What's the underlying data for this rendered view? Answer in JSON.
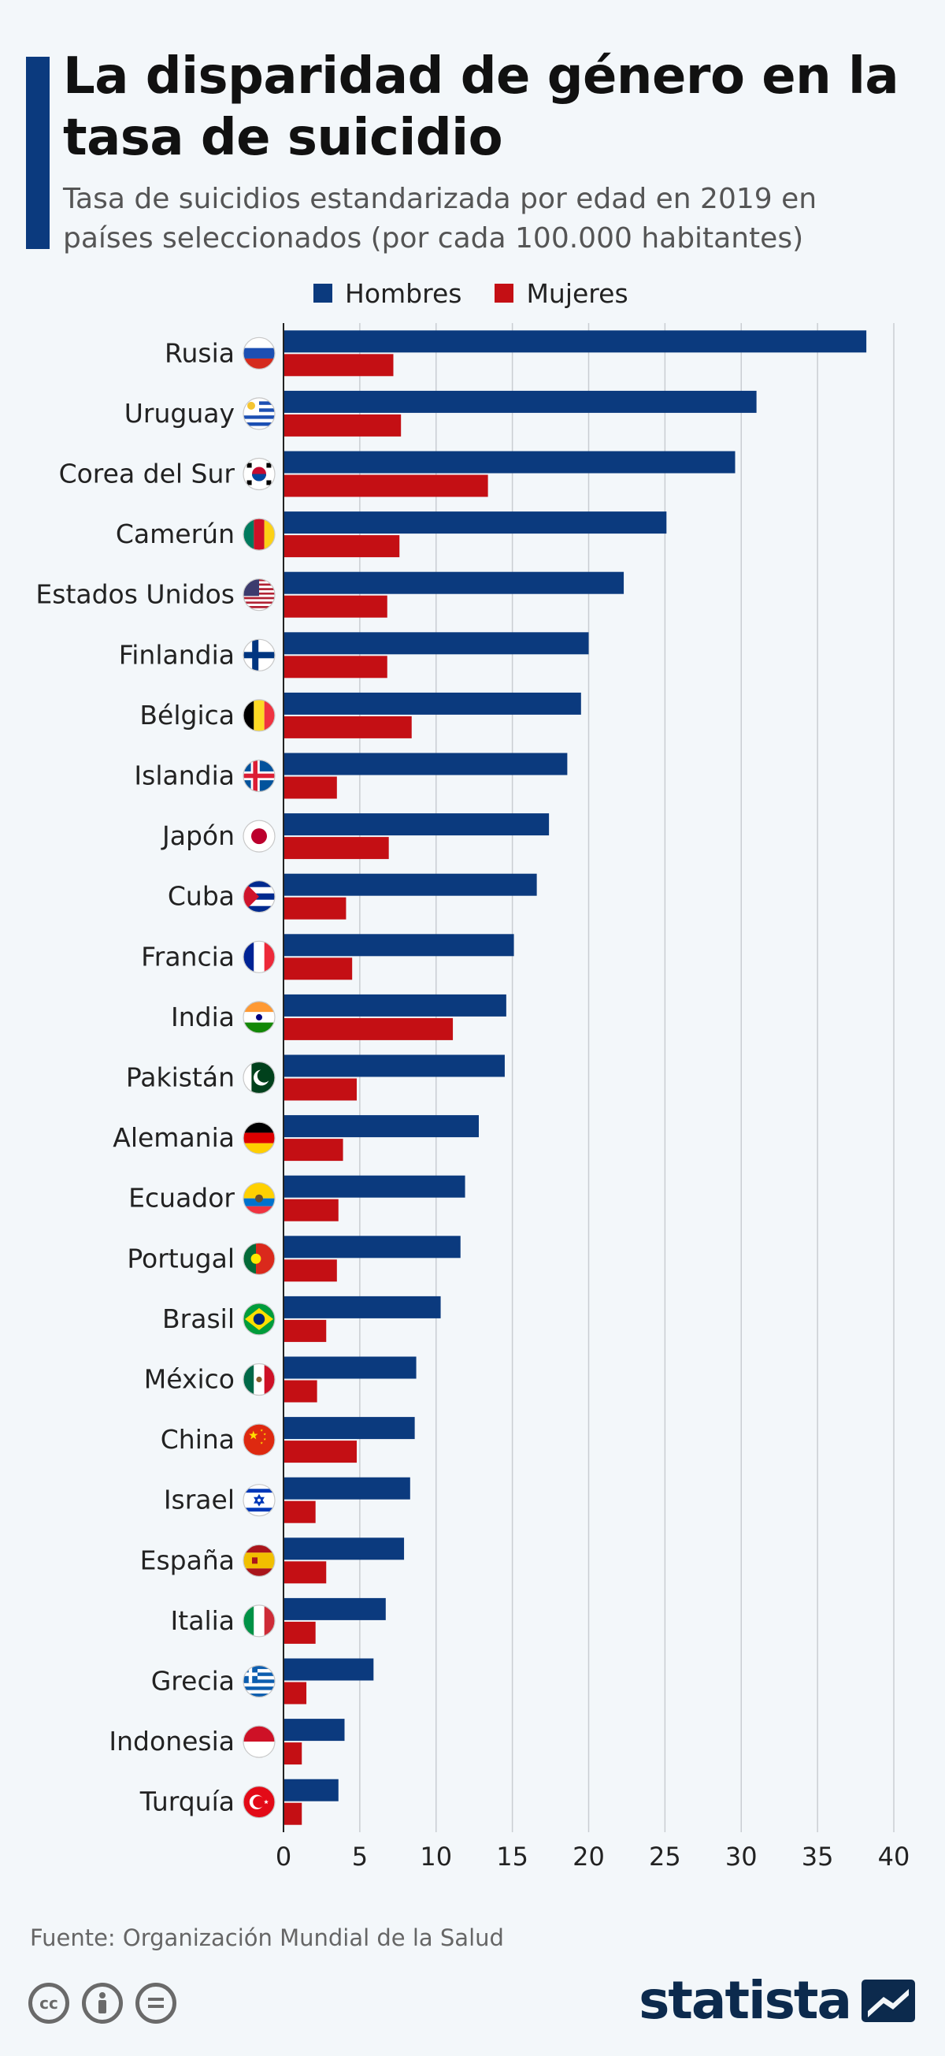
{
  "header": {
    "title": "La disparidad de género en la tasa de suicidio",
    "subtitle": "Tasa de suicidios estandarizada por edad en 2019 en países seleccionados (por cada 100.000 habitantes)"
  },
  "colors": {
    "accent": "#0b3a7e",
    "men": "#0b3a7e",
    "women": "#c40f14"
  },
  "legend": {
    "men_label": "Hombres",
    "women_label": "Mujeres"
  },
  "chart_data": {
    "type": "bar",
    "orientation": "horizontal",
    "title": "La disparidad de género en la tasa de suicidio",
    "subtitle": "Tasa de suicidios estandarizada por edad en 2019 en países seleccionados (por cada 100.000 habitantes)",
    "xlabel": "",
    "ylabel": "",
    "xlim": [
      0,
      40
    ],
    "x_ticks": [
      0,
      5,
      10,
      15,
      20,
      25,
      30,
      35,
      40
    ],
    "grid": "vertical",
    "legend_position": "top",
    "categories": [
      "Rusia",
      "Uruguay",
      "Corea del Sur",
      "Camerún",
      "Estados Unidos",
      "Finlandia",
      "Bélgica",
      "Islandia",
      "Japón",
      "Cuba",
      "Francia",
      "India",
      "Pakistán",
      "Alemania",
      "Ecuador",
      "Portugal",
      "Brasil",
      "México",
      "China",
      "Israel",
      "España",
      "Italia",
      "Grecia",
      "Indonesia",
      "Turquía"
    ],
    "flags": [
      "flag-russia",
      "flag-uruguay",
      "flag-south-korea",
      "flag-cameroon",
      "flag-usa",
      "flag-finland",
      "flag-belgium",
      "flag-iceland",
      "flag-japan",
      "flag-cuba",
      "flag-france",
      "flag-india",
      "flag-pakistan",
      "flag-germany",
      "flag-ecuador",
      "flag-portugal",
      "flag-brazil",
      "flag-mexico",
      "flag-china",
      "flag-israel",
      "flag-spain",
      "flag-italy",
      "flag-greece",
      "flag-indonesia",
      "flag-turkey"
    ],
    "series": [
      {
        "name": "Hombres",
        "color": "#0b3a7e",
        "values": [
          38.2,
          31.0,
          29.6,
          25.1,
          22.3,
          20.0,
          19.5,
          18.6,
          17.4,
          16.6,
          15.1,
          14.6,
          14.5,
          12.8,
          11.9,
          11.6,
          10.3,
          8.7,
          8.6,
          8.3,
          7.9,
          6.7,
          5.9,
          4.0,
          3.6
        ]
      },
      {
        "name": "Mujeres",
        "color": "#c40f14",
        "values": [
          7.2,
          7.7,
          13.4,
          7.6,
          6.8,
          6.8,
          8.4,
          3.5,
          6.9,
          4.1,
          4.5,
          11.1,
          4.8,
          3.9,
          3.6,
          3.5,
          2.8,
          2.2,
          4.8,
          2.1,
          2.8,
          2.1,
          1.5,
          1.2,
          1.2
        ]
      }
    ]
  },
  "footer": {
    "source": "Fuente: Organización Mundial de la Salud",
    "brand": "statista",
    "cc_icons": [
      "cc-icon",
      "attribution-icon",
      "no-derivatives-icon"
    ]
  }
}
